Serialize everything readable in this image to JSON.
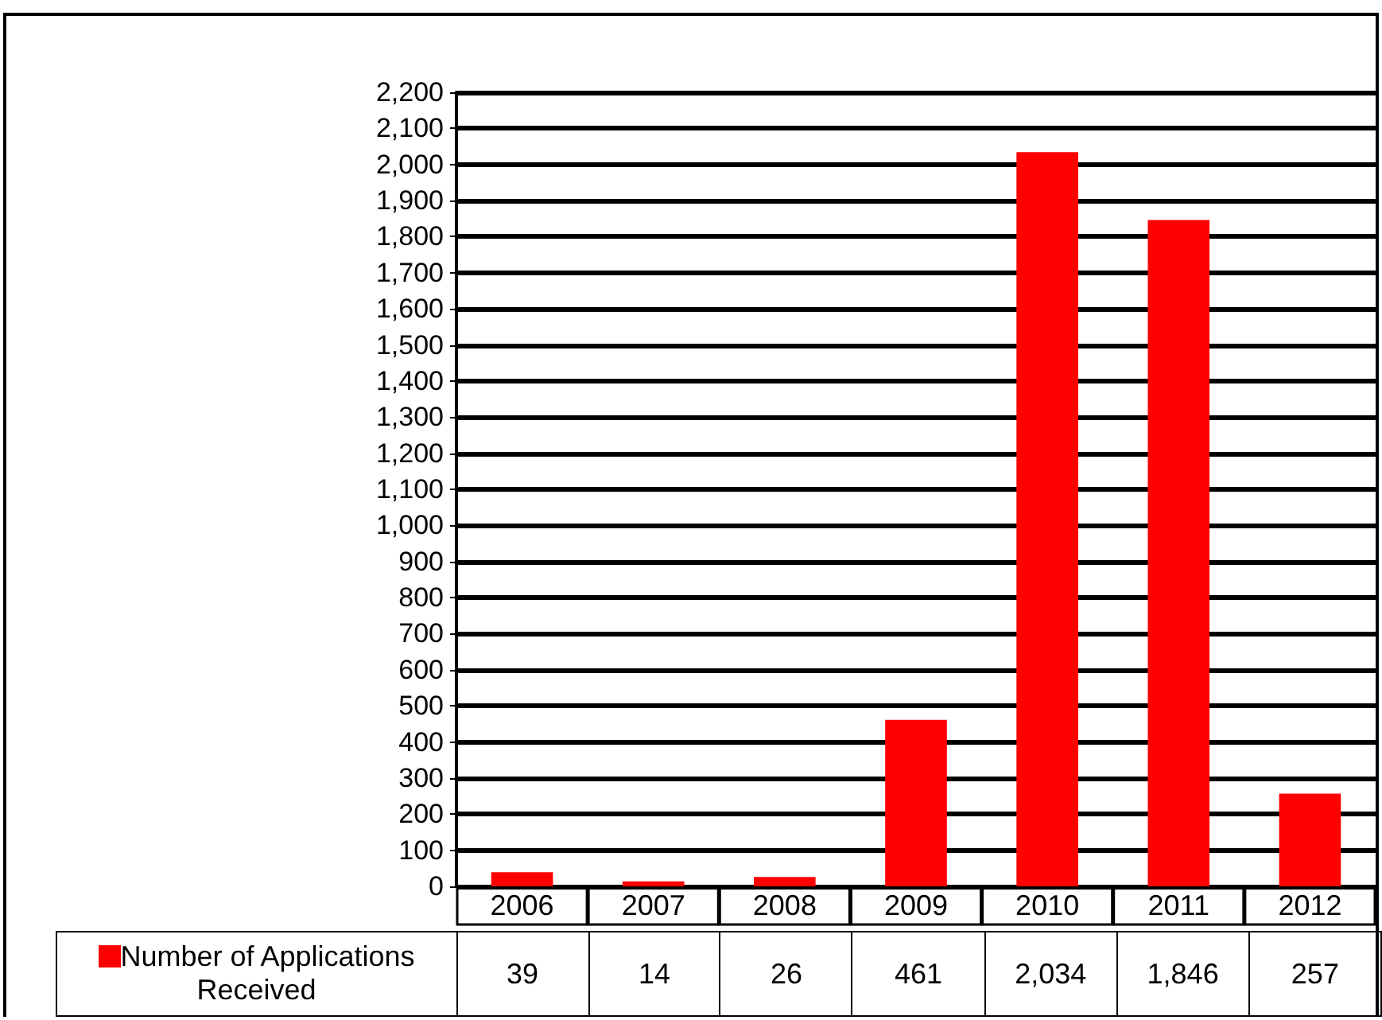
{
  "chart_data": {
    "type": "bar",
    "categories": [
      "2006",
      "2007",
      "2008",
      "2009",
      "2010",
      "2011",
      "2012"
    ],
    "series": [
      {
        "name": "Number of Applications Received",
        "color": "#ff0000",
        "values": [
          39,
          14,
          26,
          461,
          2034,
          1846,
          257
        ],
        "value_labels": [
          "39",
          "14",
          "26",
          "461",
          "2,034",
          "1,846",
          "257"
        ]
      }
    ],
    "ylim": [
      0,
      2200
    ],
    "yticks": [
      0,
      100,
      200,
      300,
      400,
      500,
      600,
      700,
      800,
      900,
      {
        "value": 1000,
        "label": "1,000"
      },
      {
        "value": 1100,
        "label": "1,100"
      },
      {
        "value": 1200,
        "label": "1,200"
      },
      {
        "value": 1300,
        "label": "1,300"
      },
      {
        "value": 1400,
        "label": "1,400"
      },
      {
        "value": 1500,
        "label": "1,500"
      },
      {
        "value": 1600,
        "label": "1,600"
      },
      {
        "value": 1700,
        "label": "1,700"
      },
      {
        "value": 1800,
        "label": "1,800"
      },
      {
        "value": 1900,
        "label": "1,900"
      },
      {
        "value": 2000,
        "label": "2,000"
      },
      {
        "value": 2100,
        "label": "2,100"
      },
      {
        "value": 2200,
        "label": "2,200"
      }
    ],
    "grid": "y",
    "legend": "bottom left"
  }
}
